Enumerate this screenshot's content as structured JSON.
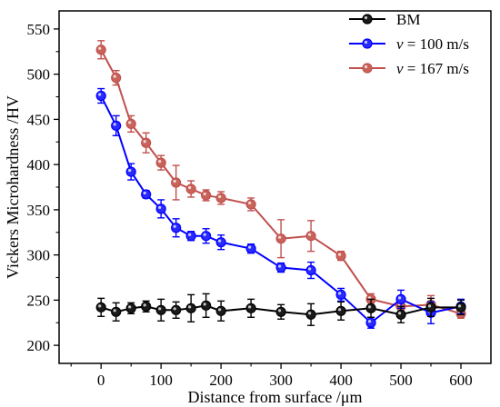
{
  "chart_data": {
    "type": "line",
    "xlabel": "Distance from surface /μm",
    "ylabel": "Vickers Microhardness /HV",
    "xlim": [
      -70,
      650
    ],
    "ylim": [
      180,
      570
    ],
    "xticks": [
      0,
      100,
      200,
      300,
      400,
      500,
      600
    ],
    "yticks": [
      200,
      250,
      300,
      350,
      400,
      450,
      500,
      550
    ],
    "legend_position": "top-right",
    "grid": false,
    "series": [
      {
        "name": "BM",
        "color": "#000000",
        "marker_color": "#1a1a1a",
        "x": [
          0,
          25,
          50,
          75,
          100,
          125,
          150,
          175,
          200,
          250,
          300,
          350,
          400,
          450,
          500,
          550,
          600
        ],
        "y": [
          242,
          237,
          241,
          243,
          239,
          239,
          241,
          244,
          238,
          241,
          237,
          234,
          238,
          241,
          234,
          242,
          242
        ],
        "err": [
          10,
          10,
          6,
          6,
          12,
          9,
          15,
          13,
          11,
          10,
          8,
          12,
          10,
          10,
          9,
          10,
          8
        ]
      },
      {
        "name": "v = 100 m/s",
        "color": "#0000ff",
        "marker_color": "#2a2aff",
        "x": [
          0,
          25,
          50,
          75,
          100,
          125,
          150,
          175,
          200,
          250,
          300,
          350,
          400,
          450,
          500,
          550,
          600
        ],
        "y": [
          476,
          443,
          392,
          367,
          351,
          330,
          321,
          321,
          314,
          307,
          286,
          283,
          256,
          225,
          251,
          236,
          243
        ],
        "err": [
          8,
          11,
          9,
          4,
          10,
          10,
          5,
          8,
          8,
          5,
          5,
          9,
          7,
          6,
          10,
          12,
          8
        ]
      },
      {
        "name": "v = 167 m/s",
        "color": "#c0504d",
        "marker_color": "#c8635a",
        "x": [
          0,
          25,
          50,
          75,
          100,
          125,
          150,
          175,
          200,
          250,
          300,
          350,
          400,
          450,
          500,
          550,
          600
        ],
        "y": [
          527,
          496,
          445,
          424,
          402,
          380,
          373,
          366,
          363,
          356,
          318,
          321,
          299,
          251,
          243,
          245,
          235
        ],
        "err": [
          10,
          8,
          9,
          11,
          8,
          19,
          9,
          6,
          7,
          7,
          21,
          17,
          5,
          6,
          6,
          10,
          5
        ]
      }
    ]
  }
}
